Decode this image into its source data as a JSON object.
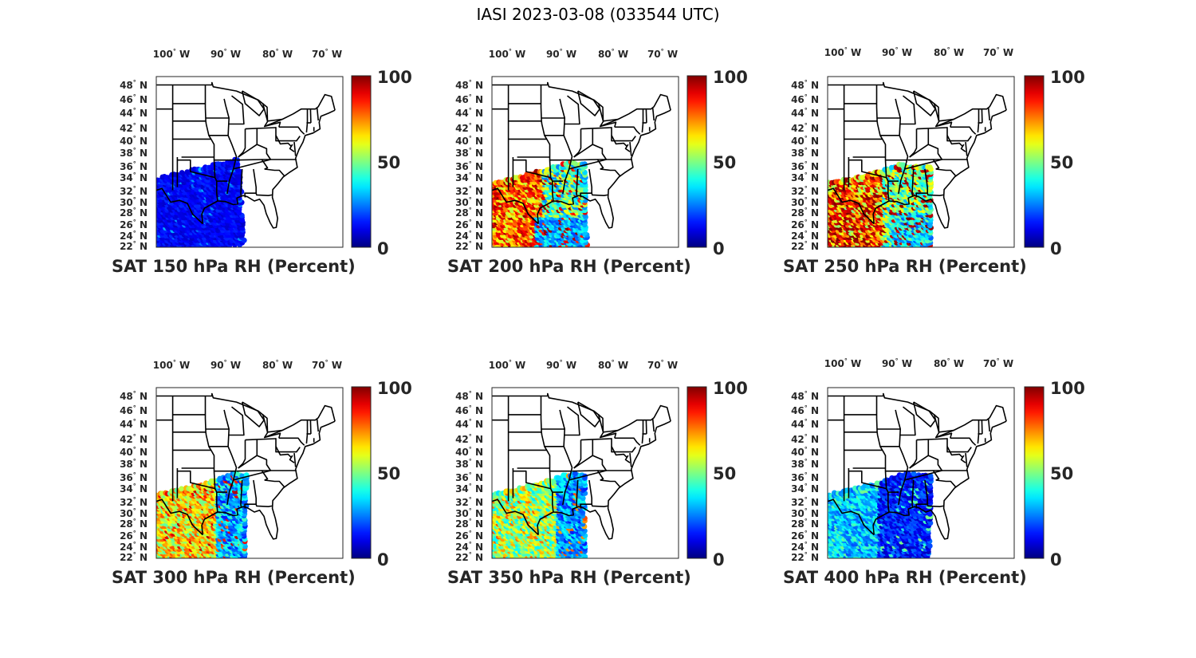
{
  "figure": {
    "title": "IASI 2023-03-08 (033544 UTC)"
  },
  "colorbar": {
    "colormap": "jet",
    "ticks": [
      "100",
      "50",
      "0"
    ],
    "range": [
      0,
      100
    ]
  },
  "axes": {
    "lon_labels": [
      "100",
      "90",
      "80",
      "70"
    ],
    "lon_hemisphere": "W",
    "lat_labels": [
      "48",
      "46",
      "44",
      "42",
      "40",
      "38",
      "36",
      "34",
      "32",
      "30",
      "28",
      "26",
      "24",
      "22"
    ],
    "lat_hemisphere": "N",
    "degree_symbol": "°"
  },
  "panels": [
    {
      "title": "SAT 150 hPa RH (Percent)",
      "level_hpa": 150,
      "typical_rh": "low (mostly 5-20%)"
    },
    {
      "title": "SAT 200 hPa RH (Percent)",
      "level_hpa": 200,
      "typical_rh": "mixed (10-95%)"
    },
    {
      "title": "SAT 250 hPa RH (Percent)",
      "level_hpa": 250,
      "typical_rh": "mixed, high in west (20-100%)"
    },
    {
      "title": "SAT 300 hPa RH (Percent)",
      "level_hpa": 300,
      "typical_rh": "moderate (15-80%)"
    },
    {
      "title": "SAT 350 hPa RH (Percent)",
      "level_hpa": 350,
      "typical_rh": "moderate (10-70%)"
    },
    {
      "title": "SAT 400 hPa RH (Percent)",
      "level_hpa": 400,
      "typical_rh": "low to moderate (5-45%)"
    }
  ]
}
